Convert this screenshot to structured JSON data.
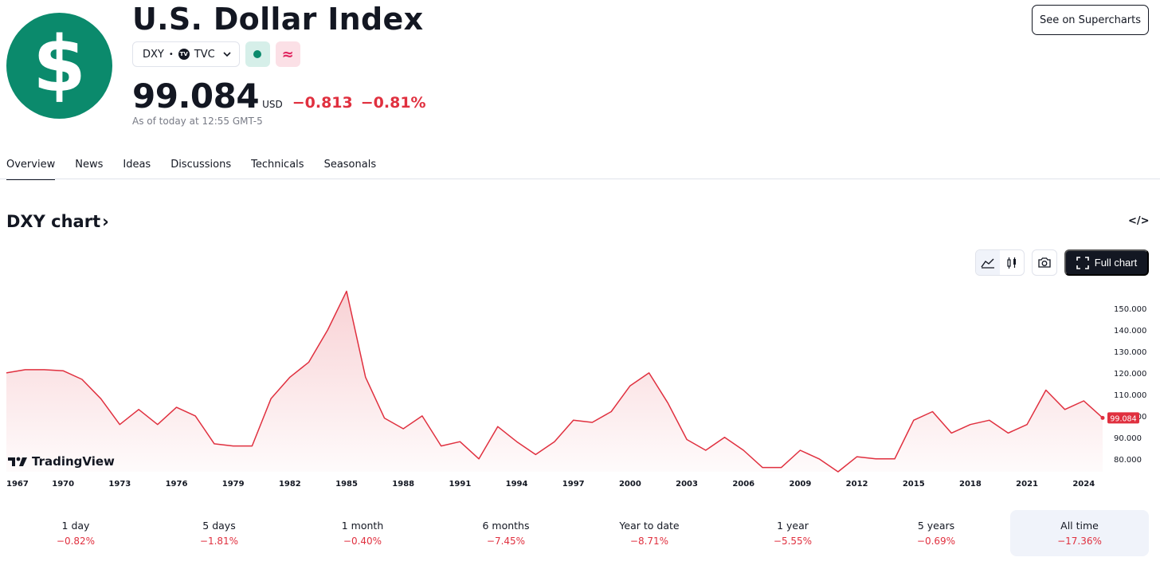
{
  "header": {
    "logo_glyph": "$",
    "title": "U.S. Dollar Index",
    "symbol": "DXY",
    "exchange": "TVC",
    "price": "99.084",
    "currency": "USD",
    "change_abs": "−0.813",
    "change_pct": "−0.81%",
    "as_of": "As of today at 12:55 GMT-5",
    "supercharts_label": "See on Supercharts"
  },
  "tabs": [
    {
      "label": "Overview",
      "active": true
    },
    {
      "label": "News"
    },
    {
      "label": "Ideas"
    },
    {
      "label": "Discussions"
    },
    {
      "label": "Technicals"
    },
    {
      "label": "Seasonals"
    }
  ],
  "chart_section": {
    "heading": "DXY chart",
    "heading_chevron": "›",
    "embed_icon": "</>",
    "full_chart_label": "Full chart",
    "watermark": "TradingView",
    "icons": [
      "line-chart-icon",
      "candlestick-icon",
      "camera-icon",
      "fullscreen-icon",
      "embed-code-icon"
    ]
  },
  "chart_data": {
    "type": "area",
    "series": [
      {
        "x": [
          1967,
          1968,
          1969,
          1970,
          1971,
          1972,
          1973,
          1974,
          1975,
          1976,
          1977,
          1978,
          1979,
          1980,
          1981,
          1982,
          1983,
          1984,
          1985,
          1986,
          1987,
          1988,
          1989,
          1990,
          1991,
          1992,
          1993,
          1994,
          1995,
          1996,
          1997,
          1998,
          1999,
          2000,
          2001,
          2002,
          2003,
          2004,
          2005,
          2006,
          2007,
          2008,
          2009,
          2010,
          2011,
          2012,
          2013,
          2014,
          2015,
          2016,
          2017,
          2018,
          2019,
          2020,
          2021,
          2022,
          2023,
          2024,
          2025
        ],
        "values": [
          120.0,
          121.5,
          121.5,
          121.0,
          117.0,
          108.0,
          96.0,
          103.0,
          96.0,
          104.0,
          100.0,
          87.0,
          86.0,
          86.0,
          108.0,
          118.0,
          125.0,
          140.0,
          158.0,
          118.0,
          99.0,
          94.0,
          100.0,
          86.0,
          88.0,
          80.0,
          95.0,
          88.0,
          82.0,
          88.0,
          98.0,
          97.0,
          102.0,
          114.0,
          120.0,
          106.0,
          89.0,
          84.0,
          90.0,
          84.0,
          76.0,
          76.0,
          84.0,
          80.0,
          74.0,
          81.0,
          80.0,
          80.0,
          98.0,
          102.0,
          92.0,
          96.0,
          98.0,
          92.0,
          96.0,
          112.0,
          103.0,
          107.0,
          99.084
        ]
      }
    ],
    "x_ticks": [
      "1967",
      "1970",
      "1973",
      "1976",
      "1979",
      "1982",
      "1985",
      "1988",
      "1991",
      "1994",
      "1997",
      "2000",
      "2003",
      "2006",
      "2009",
      "2012",
      "2015",
      "2018",
      "2021",
      "2024"
    ],
    "y_ticks": [
      "150.000",
      "140.000",
      "130.000",
      "120.000",
      "110.000",
      "100.000",
      "90.000",
      "80.000"
    ],
    "y_tick_values": [
      150,
      140,
      130,
      120,
      110,
      100,
      90,
      80
    ],
    "ylim": [
      74,
      160
    ],
    "xlim": [
      1967,
      2025
    ],
    "last_value_label": "99.084",
    "line_color": "#e0303f",
    "grid": false
  },
  "performance": [
    {
      "label": "1 day",
      "value": "−0.82%"
    },
    {
      "label": "5 days",
      "value": "−1.81%"
    },
    {
      "label": "1 month",
      "value": "−0.40%"
    },
    {
      "label": "6 months",
      "value": "−7.45%"
    },
    {
      "label": "Year to date",
      "value": "−8.71%"
    },
    {
      "label": "1 year",
      "value": "−5.55%"
    },
    {
      "label": "5 years",
      "value": "−0.69%"
    },
    {
      "label": "All time",
      "value": "−17.36%",
      "active": true
    }
  ],
  "colors": {
    "brand_green": "#0b8a6c",
    "negative_red": "#e0303f",
    "text_primary": "#131722",
    "text_muted": "#787b86"
  }
}
